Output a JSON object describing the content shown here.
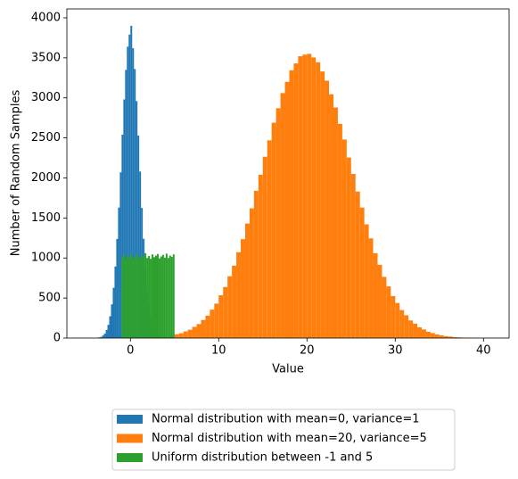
{
  "chart_data": {
    "type": "histogram",
    "xlabel": "Value",
    "ylabel": "Number of Random Samples",
    "xlim": [
      -7.2,
      42.9
    ],
    "ylim": [
      0,
      4111
    ],
    "xticks": [
      0,
      10,
      20,
      30,
      40
    ],
    "yticks": [
      0,
      500,
      1000,
      1500,
      2000,
      2500,
      3000,
      3500,
      4000
    ],
    "legend": "below",
    "series": [
      {
        "name": "Normal distribution with mean=0, variance=1",
        "color": "#1f77b4",
        "bins": [
          -4,
          -3.8,
          -3.6,
          -3.4,
          -3.2,
          -3,
          -2.8,
          -2.6,
          -2.4,
          -2.2,
          -2,
          -1.8,
          -1.6,
          -1.4,
          -1.2,
          -1,
          -0.8,
          -0.6,
          -0.4,
          -0.2,
          0,
          0.2,
          0.4,
          0.6,
          0.8,
          1,
          1.2,
          1.4,
          1.6,
          1.8,
          2,
          2.2,
          2.4,
          2.6,
          2.8,
          3,
          3.2,
          3.4,
          3.6,
          3.8,
          4
        ],
        "values": [
          2,
          5,
          9,
          15,
          33,
          55,
          101,
          165,
          272,
          421,
          628,
          893,
          1238,
          1630,
          2070,
          2540,
          2980,
          3350,
          3640,
          3790,
          3900,
          3620,
          3360,
          2960,
          2530,
          2080,
          1625,
          1240,
          890,
          620,
          425,
          268,
          170,
          97,
          58,
          30,
          17,
          7,
          4,
          1
        ]
      },
      {
        "name": "Normal distribution with mean=20, variance=5",
        "color": "#ff7f0e",
        "bins": [
          4.5,
          5,
          5.5,
          6,
          6.5,
          7,
          7.5,
          8,
          8.5,
          9,
          9.5,
          10,
          10.5,
          11,
          11.5,
          12,
          12.5,
          13,
          13.5,
          14,
          14.5,
          15,
          15.5,
          16,
          16.5,
          17,
          17.5,
          18,
          18.5,
          19,
          19.5,
          20,
          20.5,
          21,
          21.5,
          22,
          22.5,
          23,
          23.5,
          24,
          24.5,
          25,
          25.5,
          26,
          26.5,
          27,
          27.5,
          28,
          28.5,
          29,
          29.5,
          30,
          30.5,
          31,
          31.5,
          32,
          32.5,
          33,
          33.5,
          34,
          34.5,
          35,
          35.5,
          36,
          36.5,
          37,
          37.5,
          38,
          38.5
        ],
        "values": [
          34,
          47,
          60,
          83,
          104,
          140,
          175,
          226,
          280,
          355,
          430,
          535,
          638,
          772,
          905,
          1072,
          1235,
          1430,
          1620,
          1840,
          2040,
          2265,
          2470,
          2690,
          2870,
          3060,
          3200,
          3345,
          3430,
          3520,
          3540,
          3550,
          3505,
          3445,
          3330,
          3215,
          3045,
          2880,
          2675,
          2480,
          2255,
          2050,
          1830,
          1630,
          1420,
          1245,
          1060,
          915,
          765,
          645,
          525,
          438,
          350,
          285,
          220,
          180,
          135,
          108,
          79,
          62,
          45,
          35,
          24,
          19,
          12,
          9,
          6,
          4
        ]
      },
      {
        "name": "Uniform distribution between -1 and 5",
        "color": "#2ca02c",
        "bins": [
          -1,
          -0.8,
          -0.6,
          -0.4,
          -0.2,
          0,
          0.2,
          0.4,
          0.6,
          0.8,
          1,
          1.2,
          1.4,
          1.6,
          1.8,
          2,
          2.2,
          2.4,
          2.6,
          2.8,
          3,
          3.2,
          3.4,
          3.6,
          3.8,
          4,
          4.2,
          4.4,
          4.6,
          4.8,
          5
        ],
        "values": [
          1010,
          1045,
          985,
          1030,
          1000,
          1050,
          990,
          1020,
          1040,
          1005,
          995,
          1035,
          1015,
          1060,
          1000,
          1025,
          990,
          1045,
          1010,
          1030,
          1050,
          995,
          1020,
          1040,
          1005,
          1055,
          1000,
          1030,
          1015,
          1045
        ]
      }
    ]
  }
}
